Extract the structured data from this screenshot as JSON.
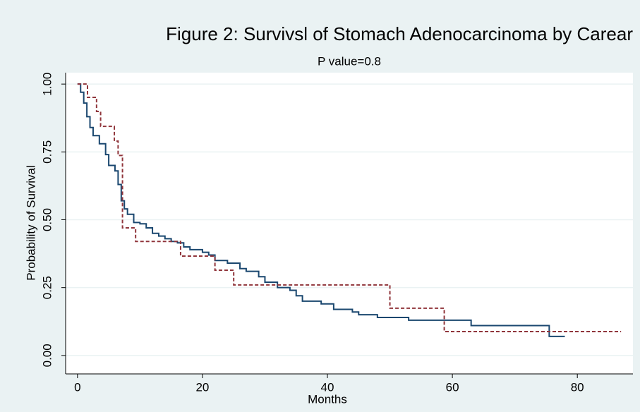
{
  "chart_data": {
    "type": "line",
    "drawstyle": "steps-post",
    "title": "Figure 2: Survivsl of Stomach Adenocarcinoma by Carear",
    "subtitle": "P value=0.8",
    "xlabel": "Months",
    "ylabel": "Probability of Survival",
    "xlim": [
      -1.9,
      88.9
    ],
    "ylim": [
      -0.068,
      1.042
    ],
    "xticks": [
      0,
      20,
      40,
      60,
      80
    ],
    "yticks": [
      {
        "value": 0,
        "label": "0.00"
      },
      {
        "value": 0.25,
        "label": "0.25"
      },
      {
        "value": 0.5,
        "label": "0.50"
      },
      {
        "value": 0.75,
        "label": "0.75"
      },
      {
        "value": 1,
        "label": "1.00"
      }
    ],
    "grid": true,
    "series": [
      {
        "color": "#1a476f",
        "dash": false,
        "x": [
          0,
          0.5,
          1,
          1.5,
          2,
          2.5,
          3.5,
          4.5,
          5,
          6,
          6.5,
          7,
          7.5,
          8,
          9,
          10,
          11,
          12,
          13,
          14,
          15,
          16,
          17,
          18,
          20,
          21,
          22,
          24,
          26,
          27,
          29,
          30,
          32,
          34,
          35,
          36,
          39,
          41,
          44,
          45,
          48,
          53,
          63,
          75.5,
          78
        ],
        "values": [
          1.0,
          0.97,
          0.93,
          0.88,
          0.84,
          0.81,
          0.78,
          0.74,
          0.7,
          0.68,
          0.63,
          0.57,
          0.54,
          0.52,
          0.49,
          0.485,
          0.47,
          0.45,
          0.44,
          0.43,
          0.42,
          0.415,
          0.4,
          0.39,
          0.38,
          0.37,
          0.35,
          0.34,
          0.32,
          0.31,
          0.29,
          0.27,
          0.25,
          0.24,
          0.22,
          0.2,
          0.19,
          0.17,
          0.16,
          0.15,
          0.14,
          0.13,
          0.11,
          0.07,
          0.07
        ]
      },
      {
        "color": "#90353b",
        "dash": true,
        "x": [
          0,
          1.6,
          3.05,
          3.7,
          5.9,
          6.5,
          7.2,
          9.3,
          16.5,
          22,
          25,
          50,
          58.7,
          87
        ],
        "values": [
          1.0,
          0.951,
          0.899,
          0.844,
          0.79,
          0.737,
          0.47,
          0.42,
          0.366,
          0.314,
          0.26,
          0.174,
          0.088,
          0.088
        ]
      }
    ]
  }
}
